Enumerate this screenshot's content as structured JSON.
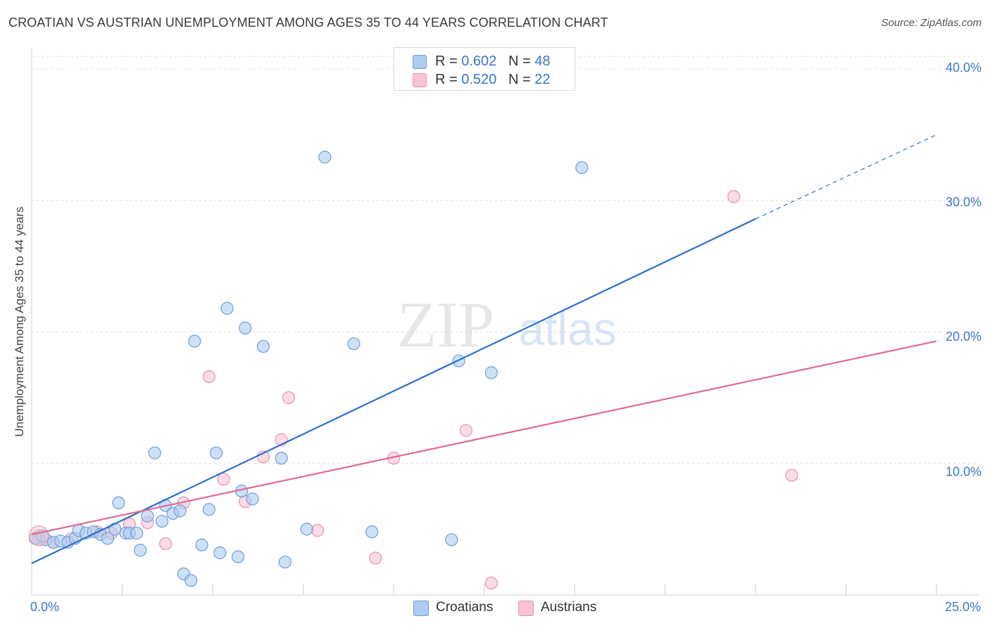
{
  "header": {
    "title": "CROATIAN VS AUSTRIAN UNEMPLOYMENT AMONG AGES 35 TO 44 YEARS CORRELATION CHART",
    "source": "Source: ZipAtlas.com"
  },
  "watermark": {
    "zip": "ZIP",
    "atlas": "atlas"
  },
  "legend": {
    "croatians": {
      "r_label": "R = ",
      "r_value": "0.602",
      "n_label": "N = ",
      "n_value": "48"
    },
    "austrians": {
      "r_label": "R = ",
      "r_value": "0.520",
      "n_label": "N = ",
      "n_value": "22"
    }
  },
  "bottom_legend": {
    "croatians": "Croatians",
    "austrians": "Austrians"
  },
  "colors": {
    "croatians_fill": "#aecbf0",
    "croatians_stroke": "#6d9fdc",
    "croatians_line": "#2a70d0",
    "austrians_fill": "#f7c4d3",
    "austrians_stroke": "#e891ad",
    "austrians_line": "#e06a94",
    "tick_text": "#3a78c9",
    "grid": "#dcdcdc"
  },
  "chart_data": {
    "type": "scatter",
    "title": "CROATIAN VS AUSTRIAN UNEMPLOYMENT AMONG AGES 35 TO 44 YEARS CORRELATION CHART",
    "xlabel": "",
    "ylabel": "Unemployment Among Ages 35 to 44 years",
    "xlim": [
      0,
      25
    ],
    "ylim": [
      0,
      40
    ],
    "x_tick_labels": [
      "0.0%",
      "25.0%"
    ],
    "y_ticks": [
      10,
      20,
      30,
      40
    ],
    "y_tick_labels": [
      "10.0%",
      "20.0%",
      "30.0%",
      "40.0%"
    ],
    "grid": true,
    "legend_position": "top-center",
    "series": [
      {
        "name": "Croatians",
        "r": 0.602,
        "n": 48,
        "trend": {
          "x0": 0,
          "y0": 2.4,
          "x1": 20.0,
          "y1": 28.6,
          "dashed_to_x": 25.0,
          "dashed_to_y": 35.0
        },
        "points": [
          [
            0.2,
            4.2
          ],
          [
            0.4,
            4.2
          ],
          [
            0.6,
            4.0
          ],
          [
            0.8,
            4.1
          ],
          [
            1.0,
            4.0
          ],
          [
            1.2,
            4.3
          ],
          [
            1.3,
            4.9
          ],
          [
            1.5,
            4.7
          ],
          [
            1.7,
            4.8
          ],
          [
            1.9,
            4.6
          ],
          [
            2.1,
            4.3
          ],
          [
            2.3,
            5.0
          ],
          [
            2.4,
            7.0
          ],
          [
            2.6,
            4.7
          ],
          [
            2.7,
            4.7
          ],
          [
            2.9,
            4.7
          ],
          [
            3.0,
            3.4
          ],
          [
            3.2,
            6.0
          ],
          [
            3.4,
            10.8
          ],
          [
            3.6,
            5.6
          ],
          [
            3.7,
            6.8
          ],
          [
            3.9,
            6.2
          ],
          [
            4.1,
            6.4
          ],
          [
            4.2,
            1.6
          ],
          [
            4.4,
            1.1
          ],
          [
            4.5,
            19.3
          ],
          [
            4.7,
            3.8
          ],
          [
            4.9,
            6.5
          ],
          [
            5.1,
            10.8
          ],
          [
            5.2,
            3.2
          ],
          [
            5.4,
            21.8
          ],
          [
            5.7,
            2.9
          ],
          [
            5.8,
            7.9
          ],
          [
            5.9,
            20.3
          ],
          [
            6.1,
            7.3
          ],
          [
            6.4,
            18.9
          ],
          [
            6.9,
            10.4
          ],
          [
            7.0,
            2.5
          ],
          [
            7.6,
            5.0
          ],
          [
            8.1,
            33.3
          ],
          [
            8.9,
            19.1
          ],
          [
            9.4,
            4.8
          ],
          [
            11.8,
            17.8
          ],
          [
            11.6,
            4.2
          ],
          [
            12.7,
            16.9
          ],
          [
            15.2,
            32.5
          ],
          [
            0.1,
            4.3
          ],
          [
            0.3,
            4.5
          ]
        ]
      },
      {
        "name": "Austrians",
        "r": 0.52,
        "n": 22,
        "trend": {
          "x0": 0,
          "y0": 4.6,
          "x1": 25.0,
          "y1": 19.3
        },
        "points": [
          [
            0.2,
            4.5
          ],
          [
            0.6,
            4.0
          ],
          [
            1.1,
            4.3
          ],
          [
            1.8,
            4.8
          ],
          [
            2.2,
            4.7
          ],
          [
            2.7,
            5.4
          ],
          [
            3.2,
            5.5
          ],
          [
            3.7,
            3.9
          ],
          [
            4.2,
            7.0
          ],
          [
            4.9,
            16.6
          ],
          [
            5.3,
            8.8
          ],
          [
            5.9,
            7.1
          ],
          [
            6.4,
            10.5
          ],
          [
            6.9,
            11.8
          ],
          [
            7.1,
            15.0
          ],
          [
            7.9,
            4.9
          ],
          [
            9.5,
            2.8
          ],
          [
            10.0,
            10.4
          ],
          [
            12.0,
            12.5
          ],
          [
            12.7,
            0.9
          ],
          [
            19.4,
            30.3
          ],
          [
            21.0,
            9.1
          ]
        ]
      }
    ]
  }
}
